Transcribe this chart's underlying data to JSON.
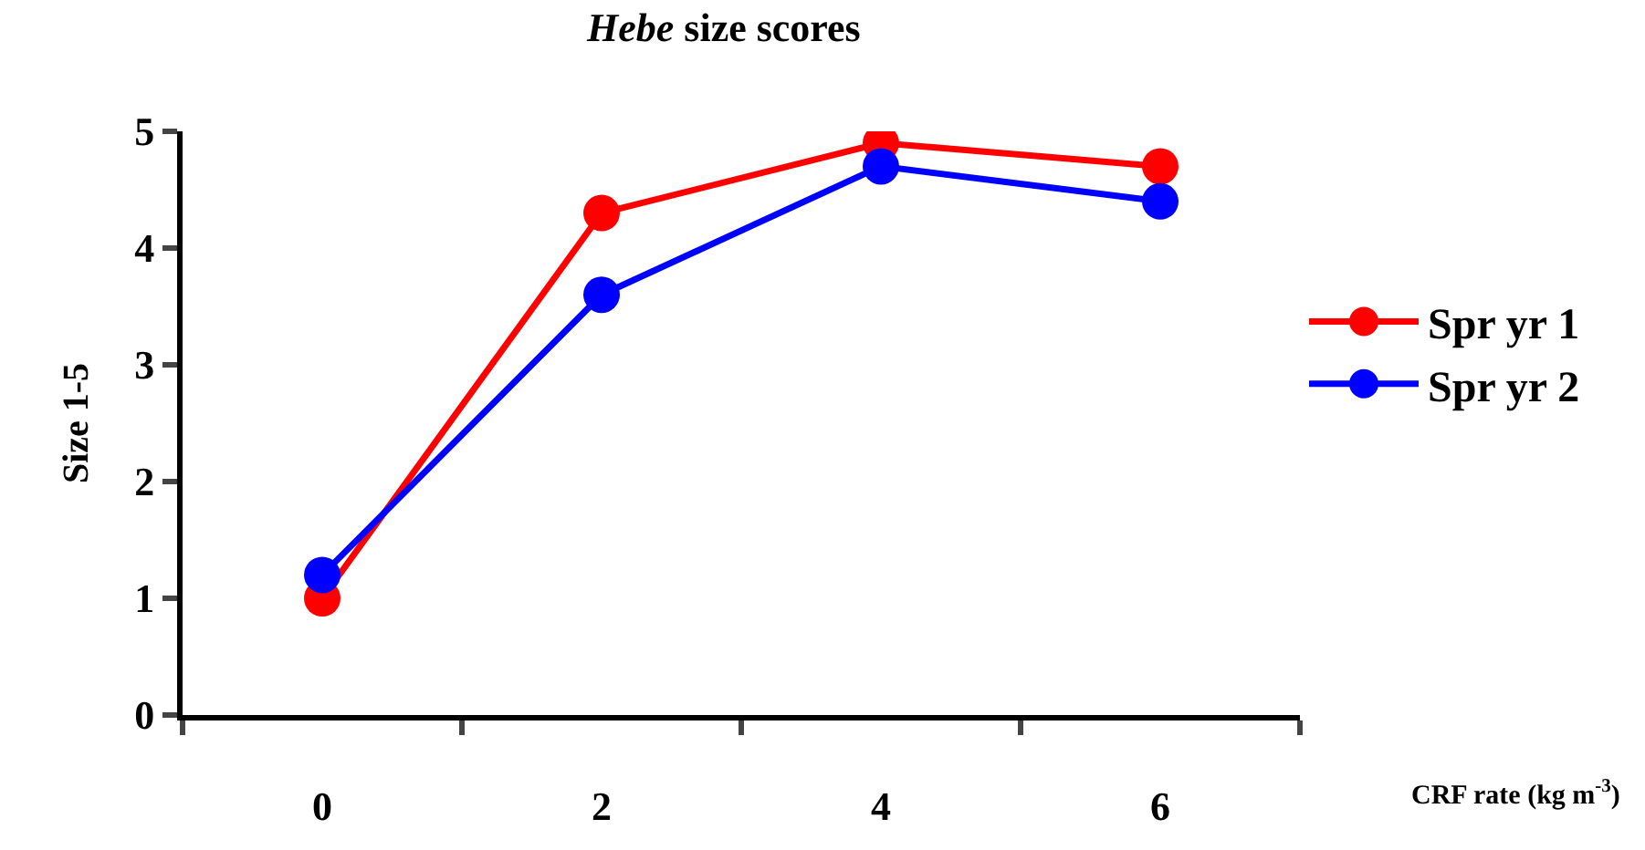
{
  "chart_data": {
    "type": "line",
    "title": "Hebe size scores",
    "xlabel": "CRF rate (kg m$^{-3}$)",
    "ylabel": "Size 1-5",
    "categories": [
      "0",
      "2",
      "4",
      "6"
    ],
    "series": [
      {
        "name": "Spr yr 1",
        "color": "#ff0000",
        "values": [
          1.0,
          4.3,
          4.9,
          4.7
        ]
      },
      {
        "name": "Spr yr 2",
        "color": "#0000ff",
        "values": [
          1.2,
          3.6,
          4.7,
          4.4
        ]
      }
    ],
    "ylim": [
      0,
      5
    ],
    "yticks": [
      0,
      1,
      2,
      3,
      4,
      5
    ],
    "legend": "right",
    "marker": "circle",
    "line_style": "solid"
  }
}
